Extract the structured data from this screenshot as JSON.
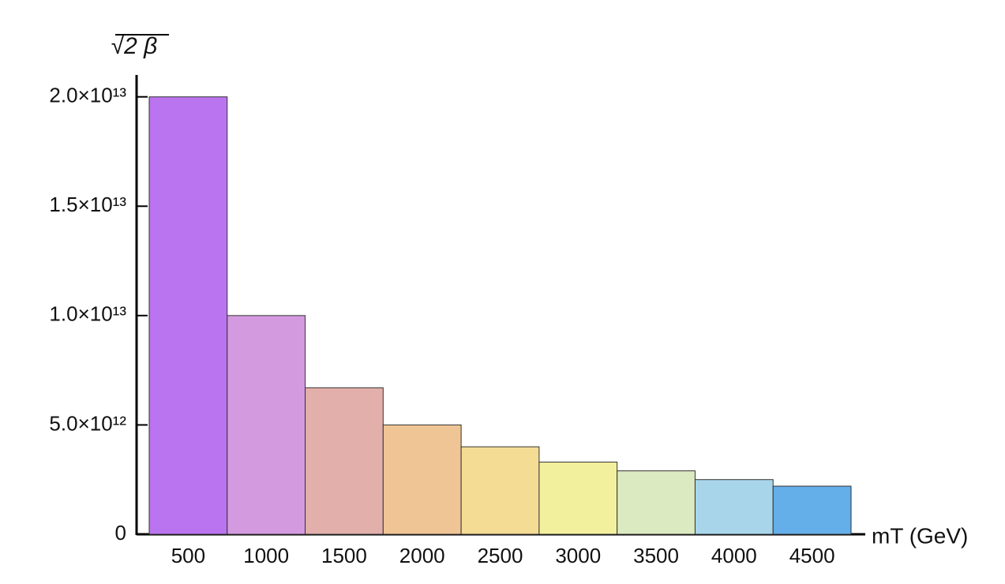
{
  "chart_data": {
    "type": "bar",
    "y_label": "√2 β",
    "x_label": "mT (GeV)",
    "categories": [
      "500",
      "1000",
      "1500",
      "2000",
      "2500",
      "3000",
      "3500",
      "4000",
      "4500"
    ],
    "values": [
      20000000000000,
      10000000000000,
      6700000000000,
      5000000000000,
      4000000000000,
      3300000000000,
      2900000000000,
      2500000000000,
      2200000000000
    ],
    "colors": [
      "#bb74ef",
      "#d49ae0",
      "#e3afab",
      "#efc595",
      "#f4dc95",
      "#f3f09d",
      "#dbeac0",
      "#a9d5ea",
      "#64aeea"
    ],
    "ylim": [
      0,
      21000000000000
    ],
    "yticks": [
      0,
      {
        "value": 5000000000000,
        "label": "5.0×10¹²"
      },
      {
        "value": 10000000000000,
        "label": "1.0×10¹³"
      },
      {
        "value": 15000000000000,
        "label": "1.5×10¹³"
      },
      {
        "value": 20000000000000,
        "label": "2.0×10¹³"
      }
    ],
    "grid": false
  }
}
